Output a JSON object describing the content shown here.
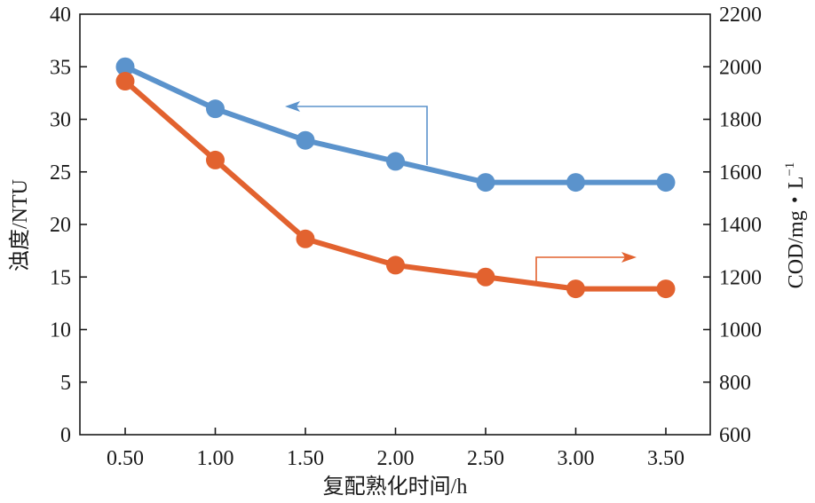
{
  "chart_data": {
    "type": "line",
    "x": [
      "0.50",
      "1.00",
      "1.50",
      "2.00",
      "2.50",
      "3.00",
      "3.50"
    ],
    "xlabel": "复配熟化时间/h",
    "ylabel_left": "浊度/NTU",
    "ylabel_right": "COD/mg・L",
    "ylabel_right_sup": "−1",
    "ylim_left": [
      0,
      40
    ],
    "ylim_right": [
      600,
      2200
    ],
    "yticks_left": [
      "0",
      "5",
      "10",
      "15",
      "20",
      "25",
      "30",
      "35",
      "40"
    ],
    "yticks_right": [
      "600",
      "800",
      "1000",
      "1200",
      "1400",
      "1600",
      "1800",
      "2000",
      "2200"
    ],
    "grid": false,
    "series": [
      {
        "axis": "left",
        "color": "#5b93cc",
        "values": [
          35,
          31,
          28,
          26,
          24,
          24,
          24
        ]
      },
      {
        "axis": "right",
        "color": "#e2622f",
        "values": [
          1945,
          1645,
          1345,
          1245,
          1200,
          1155,
          1155
        ]
      }
    ]
  }
}
